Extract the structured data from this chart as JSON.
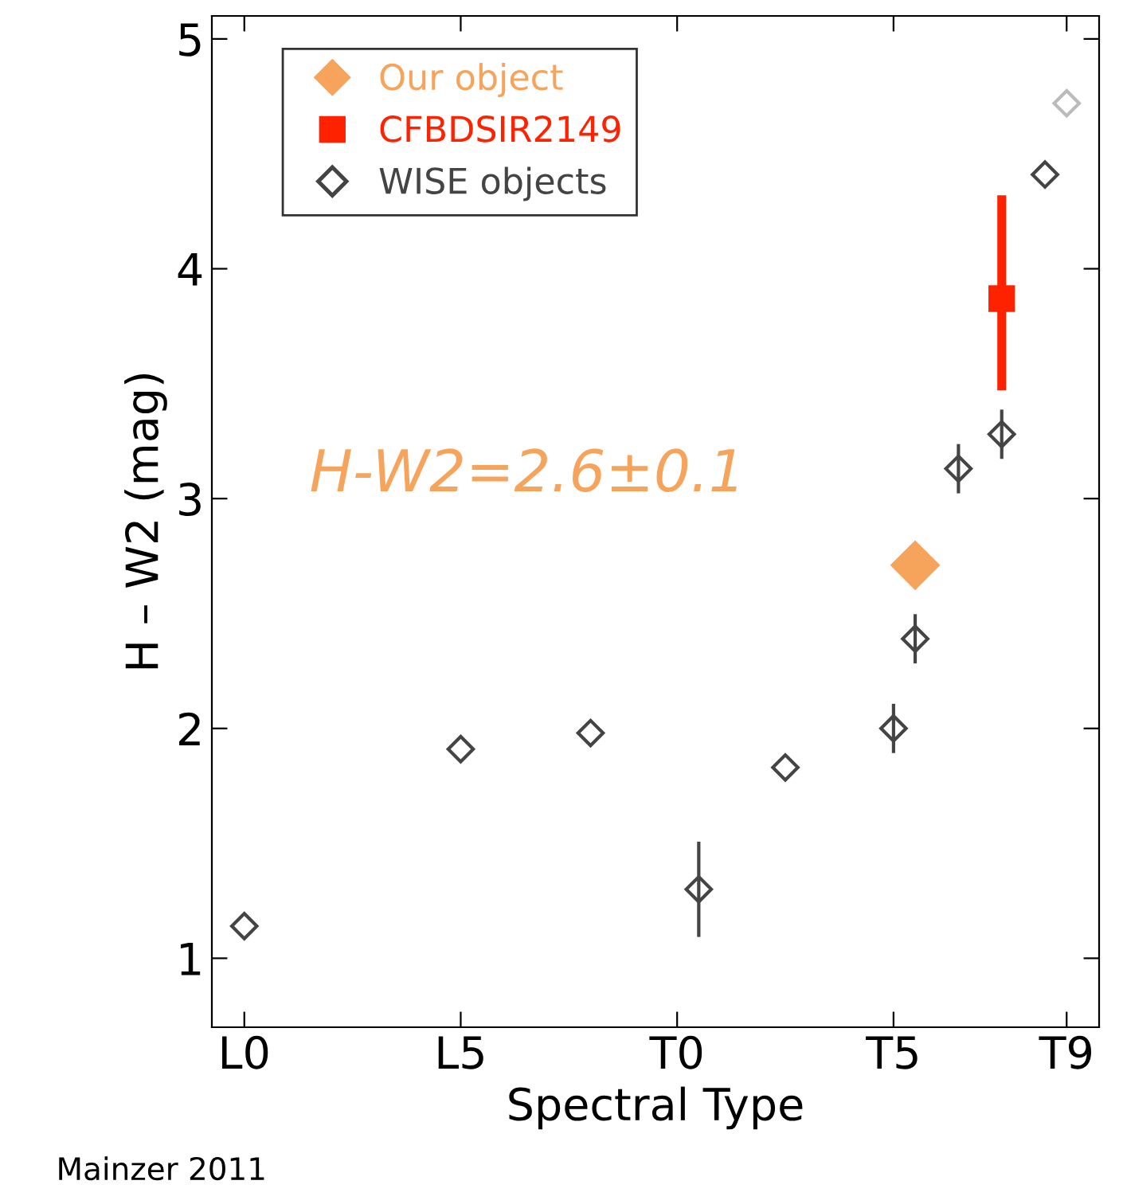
{
  "chart_data": {
    "type": "scatter",
    "xlabel": "Spectral Type",
    "ylabel": "H – W2 (mag)",
    "categories": [
      "L0",
      null,
      null,
      null,
      null,
      null,
      null,
      null,
      null,
      null,
      "L5",
      null,
      null,
      null,
      null,
      null,
      null,
      null,
      null,
      null,
      "T0",
      null,
      null,
      null,
      null,
      null,
      null,
      null,
      null,
      null,
      "T5",
      null,
      null,
      null,
      null,
      null,
      null,
      null,
      "T9"
    ],
    "ylim": [
      0.7,
      5.1
    ],
    "yticks": [
      1,
      2,
      3,
      4,
      5
    ],
    "grid": false,
    "legend": "top left",
    "series": [
      {
        "name": "Our object",
        "color": "#f6a45c",
        "marker": "diamond",
        "values": [
          null,
          null,
          null,
          null,
          null,
          null,
          null,
          null,
          null,
          null,
          null,
          null,
          null,
          null,
          null,
          null,
          null,
          null,
          null,
          null,
          null,
          null,
          null,
          null,
          null,
          null,
          null,
          null,
          null,
          null,
          null,
          2.71,
          null,
          null,
          null,
          null,
          null,
          null,
          null
        ]
      },
      {
        "name": "CFBDSIR2149",
        "color": "#ff2200",
        "marker": "square",
        "values": [
          null,
          null,
          null,
          null,
          null,
          null,
          null,
          null,
          null,
          null,
          null,
          null,
          null,
          null,
          null,
          null,
          null,
          null,
          null,
          null,
          null,
          null,
          null,
          null,
          null,
          null,
          null,
          null,
          null,
          null,
          null,
          null,
          null,
          null,
          null,
          3.87,
          null,
          null,
          null
        ],
        "errors": [
          null,
          null,
          null,
          null,
          null,
          null,
          null,
          null,
          null,
          null,
          null,
          null,
          null,
          null,
          null,
          null,
          null,
          null,
          null,
          null,
          null,
          null,
          null,
          null,
          null,
          null,
          null,
          null,
          null,
          null,
          null,
          null,
          null,
          null,
          null,
          [
            3.49,
            4.3
          ],
          null,
          null,
          null
        ]
      },
      {
        "name": "WISE objects",
        "color": "#444444",
        "marker": "diamond",
        "colors": [
          "#444444",
          "#444444",
          "#444444",
          "#444444",
          "#444444",
          "#444444",
          "#444444",
          "#444444",
          "#444444",
          "#444444",
          "#444444",
          "#444444",
          "#444444",
          "#444444",
          "#444444",
          "#444444",
          "#444444",
          "#444444",
          "#444444",
          "#444444",
          "#444444",
          "#444444",
          "#444444",
          "#444444",
          "#444444",
          "#444444",
          "#444444",
          "#444444",
          "#444444",
          "#444444",
          "#444444",
          "#444444",
          "#444444",
          "#444444",
          "#444444",
          "#444444",
          "#444444",
          "#444444",
          "#bbbbbb"
        ],
        "values": [
          1.14,
          null,
          null,
          null,
          null,
          null,
          null,
          null,
          null,
          null,
          1.91,
          null,
          null,
          null,
          null,
          null,
          1.98,
          null,
          null,
          null,
          null,
          1.3,
          null,
          null,
          null,
          1.83,
          null,
          null,
          null,
          null,
          2.0,
          2.39,
          null,
          3.13,
          null,
          3.28,
          null,
          4.41,
          4.72
        ],
        "errors": [
          null,
          null,
          null,
          null,
          null,
          null,
          null,
          null,
          null,
          null,
          null,
          null,
          null,
          null,
          null,
          null,
          null,
          null,
          null,
          null,
          null,
          0.2,
          null,
          null,
          null,
          null,
          null,
          null,
          null,
          null,
          0.1,
          0.1,
          null,
          0.1,
          null,
          0.1,
          null,
          null,
          null
        ]
      }
    ],
    "annotations": [
      "H-W2=2.6±0.1",
      "Mainzer 2011"
    ]
  }
}
